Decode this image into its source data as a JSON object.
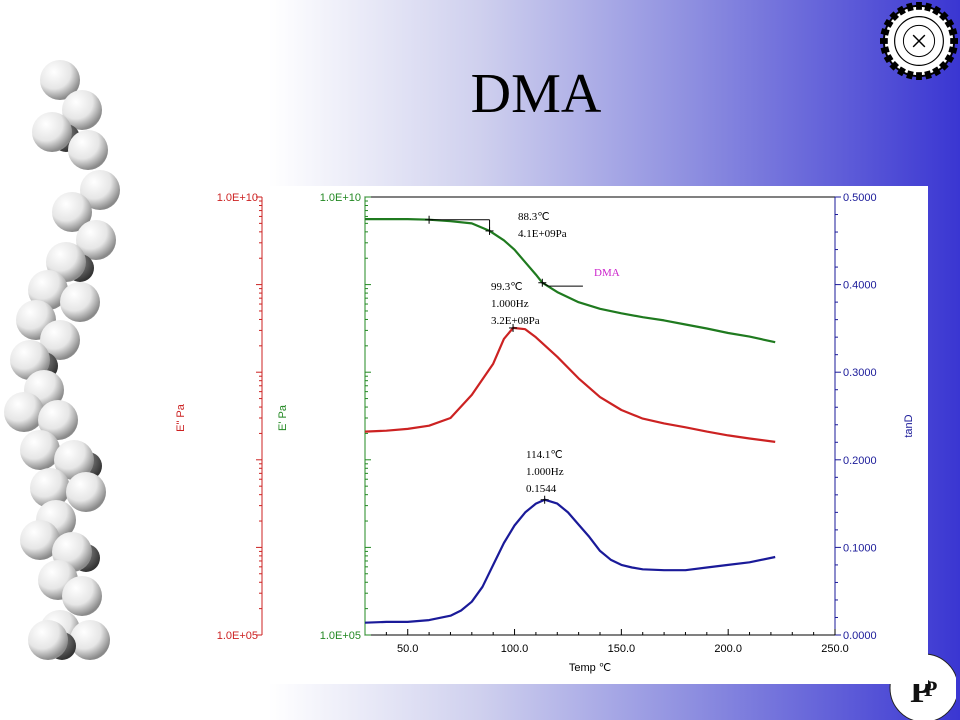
{
  "slide": {
    "title": "DMA"
  },
  "logos": {
    "seal": "seal-icon",
    "corner": "pp-logo-icon"
  },
  "chart_data": {
    "type": "line",
    "title": "",
    "xlabel": "Temp ℃",
    "x_range": [
      30,
      250
    ],
    "x_ticks": [
      "50.0",
      "100.0",
      "150.0",
      "200.0",
      "250.0"
    ],
    "x_tick_values": [
      50,
      100,
      150,
      200,
      250
    ],
    "y_axes": [
      {
        "key": "epp",
        "label": "E\" Pa",
        "scale": "log",
        "range": [
          100000,
          10000000000
        ],
        "top_label": "1.0E+10",
        "bottom_label": "1.0E+05",
        "color": "#cc2222"
      },
      {
        "key": "ep",
        "label": "E' Pa",
        "scale": "log",
        "range": [
          100000,
          10000000000
        ],
        "top_label": "1.0E+10",
        "bottom_label": "1.0E+05",
        "color": "#228822"
      },
      {
        "key": "tand",
        "label": "tanD",
        "scale": "linear",
        "range": [
          0,
          0.5
        ],
        "ticks": [
          "0.0000",
          "0.1000",
          "0.2000",
          "0.3000",
          "0.4000",
          "0.5000"
        ],
        "tick_values": [
          0,
          0.1,
          0.2,
          0.3,
          0.4,
          0.5
        ],
        "color": "#1a1a99"
      }
    ],
    "series": [
      {
        "axis": "ep",
        "color": "#1f7a1f",
        "x": [
          30,
          40,
          50,
          60,
          70,
          80,
          88.3,
          95,
          100,
          105,
          110,
          113,
          120,
          130,
          140,
          150,
          160,
          170,
          180,
          190,
          200,
          210,
          222
        ],
        "y": [
          5600000000.0,
          5600000000.0,
          5600000000.0,
          5500000000.0,
          5300000000.0,
          5000000000.0,
          4100000000.0,
          3200000000.0,
          2500000000.0,
          1800000000.0,
          1300000000.0,
          1050000000.0,
          820000000.0,
          630000000.0,
          530000000.0,
          470000000.0,
          425000000.0,
          390000000.0,
          350000000.0,
          315000000.0,
          280000000.0,
          255000000.0,
          220000000.0
        ]
      },
      {
        "axis": "epp",
        "color": "#cc2222",
        "x": [
          30,
          40,
          50,
          60,
          70,
          80,
          90,
          95,
          99.3,
          105,
          110,
          120,
          130,
          140,
          150,
          160,
          170,
          180,
          190,
          200,
          210,
          222
        ],
        "y": [
          21000000.0,
          21500000.0,
          22500000.0,
          24500000.0,
          30000000.0,
          55000000.0,
          125000000.0,
          240000000.0,
          320000000.0,
          310000000.0,
          250000000.0,
          150000000.0,
          85000000.0,
          52000000.0,
          37000000.0,
          29500000.0,
          26000000.0,
          23500000.0,
          21000000.0,
          19000000.0,
          17500000.0,
          16000000.0
        ]
      },
      {
        "axis": "tand",
        "color": "#1a1a99",
        "x": [
          30,
          40,
          50,
          60,
          70,
          75,
          80,
          85,
          90,
          95,
          100,
          105,
          110,
          114.1,
          120,
          125,
          130,
          135,
          140,
          145,
          150,
          155,
          160,
          170,
          180,
          190,
          200,
          210,
          222
        ],
        "y": [
          0.014,
          0.015,
          0.015,
          0.017,
          0.022,
          0.028,
          0.038,
          0.055,
          0.08,
          0.105,
          0.125,
          0.14,
          0.15,
          0.1544,
          0.15,
          0.14,
          0.126,
          0.112,
          0.096,
          0.086,
          0.08,
          0.077,
          0.075,
          0.074,
          0.074,
          0.077,
          0.08,
          0.083,
          0.089
        ]
      }
    ],
    "annotations": [
      {
        "lines": [
          "88.3℃",
          "4.1E+09Pa"
        ]
      },
      {
        "lines": [
          "99.3℃",
          "1.000Hz",
          "3.2E+08Pa"
        ]
      },
      {
        "lines": [
          "114.1℃",
          "1.000Hz",
          "0.1544"
        ]
      },
      {
        "lines": [
          "DMA"
        ],
        "color": "#cc22cc"
      }
    ]
  }
}
